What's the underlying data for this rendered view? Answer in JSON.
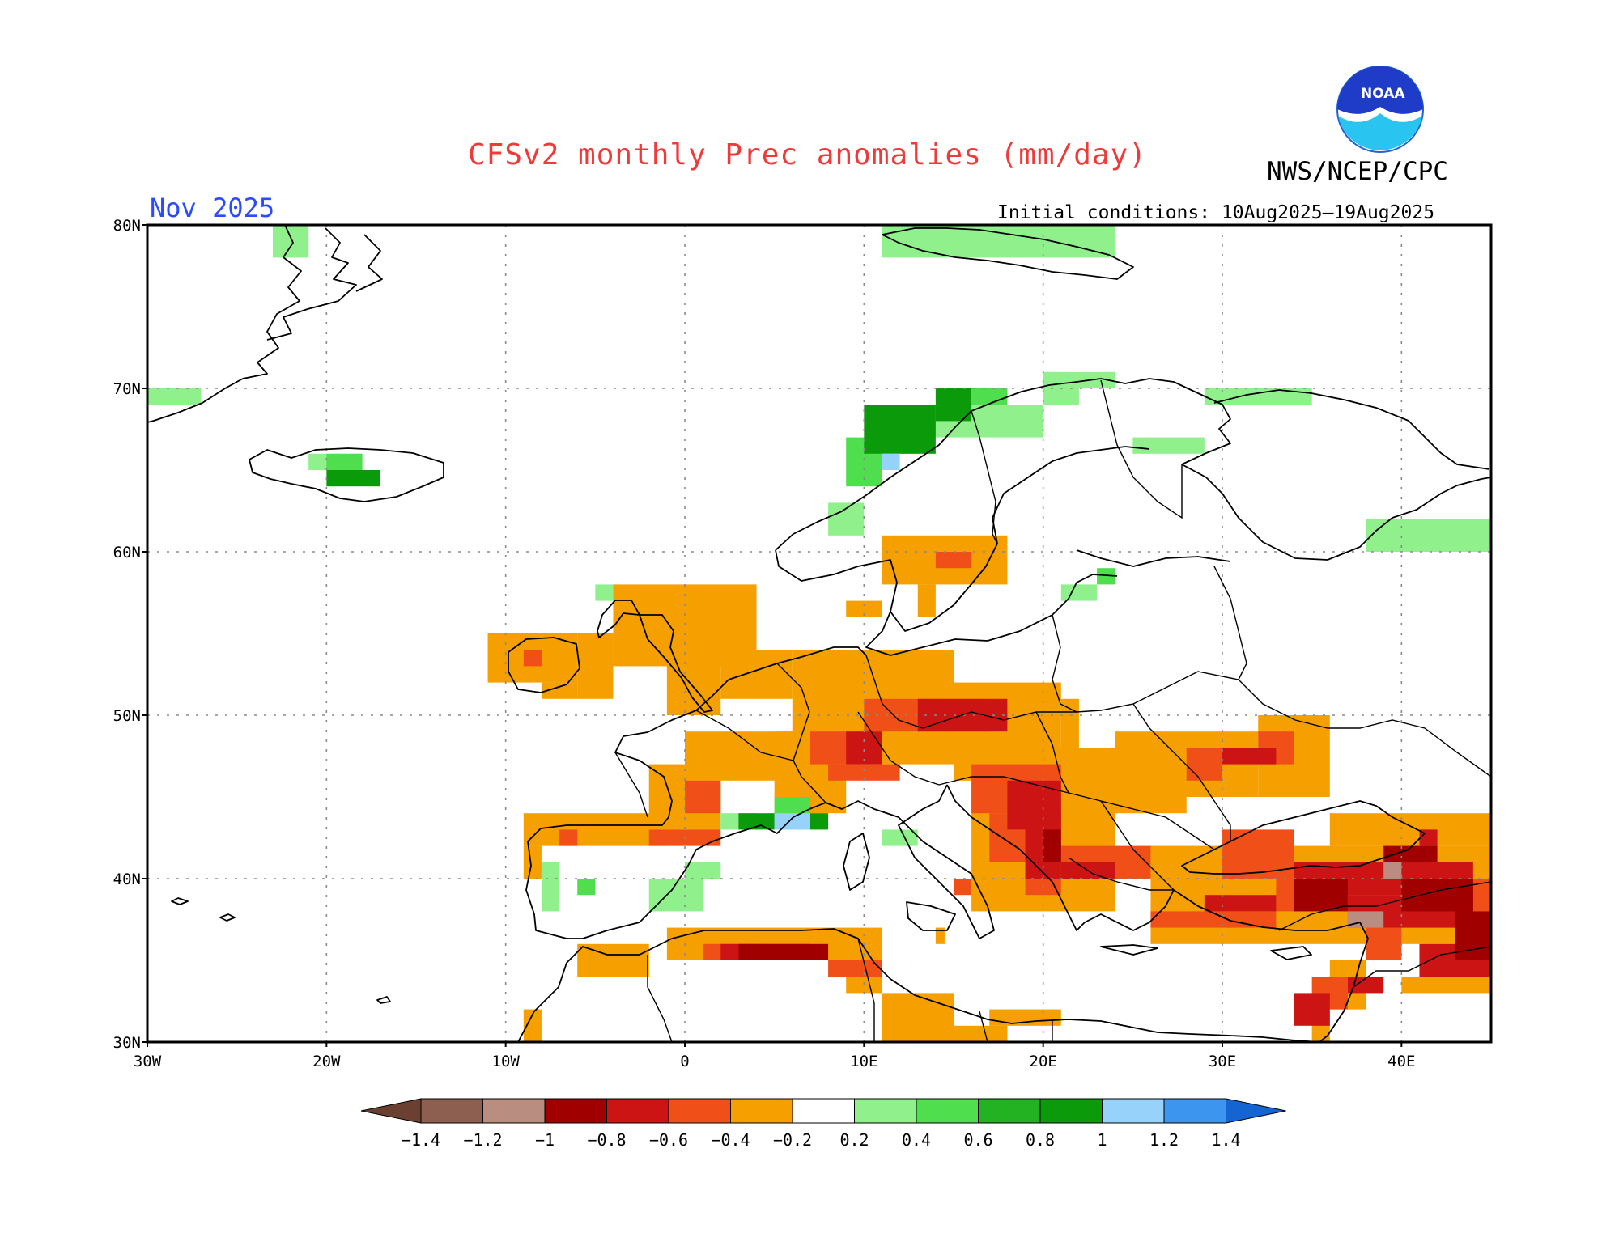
{
  "title": "CFSv2 monthly Prec anomalies (mm/day)",
  "period": "Nov 2025",
  "agency": "NWS/NCEP/CPC",
  "logo_text": "NOAA",
  "initial_conditions": "Initial conditions: 10Aug2025–19Aug2025",
  "map": {
    "lon_range": [
      -30,
      45
    ],
    "lat_range": [
      30,
      80
    ],
    "lon_ticks": [
      {
        "value": -30,
        "label": "30W"
      },
      {
        "value": -20,
        "label": "20W"
      },
      {
        "value": -10,
        "label": "10W"
      },
      {
        "value": 0,
        "label": "0"
      },
      {
        "value": 10,
        "label": "10E"
      },
      {
        "value": 20,
        "label": "20E"
      },
      {
        "value": 30,
        "label": "30E"
      },
      {
        "value": 40,
        "label": "40E"
      }
    ],
    "lat_ticks": [
      {
        "value": 30,
        "label": "30N"
      },
      {
        "value": 40,
        "label": "40N"
      },
      {
        "value": 50,
        "label": "50N"
      },
      {
        "value": 60,
        "label": "60N"
      },
      {
        "value": 70,
        "label": "70N"
      },
      {
        "value": 80,
        "label": "80N"
      }
    ],
    "grid": true
  },
  "colorbar": {
    "bins": [
      {
        "color": "#8c5f50"
      },
      {
        "color": "#b98e81"
      },
      {
        "color": "#a00000"
      },
      {
        "color": "#cd1414"
      },
      {
        "color": "#f05018"
      },
      {
        "color": "#f5a000"
      },
      {
        "color": "#ffffff"
      },
      {
        "color": "#8ff08c"
      },
      {
        "color": "#4ede4e"
      },
      {
        "color": "#22b222"
      },
      {
        "color": "#0a9a0a"
      },
      {
        "color": "#96d2fa"
      },
      {
        "color": "#3c96f0"
      }
    ],
    "low_color": "#6b4030",
    "high_color": "#1464d2",
    "labels": [
      "−1.4",
      "−1.2",
      "−1",
      "−0.8",
      "−0.6",
      "−0.4",
      "−0.2",
      "0.2",
      "0.4",
      "0.6",
      "0.8",
      "1",
      "1.2",
      "1.4"
    ]
  },
  "anomaly_regions": [
    {
      "color": "#f5a000",
      "cells": [
        [
          -4,
          58,
          4,
          53
        ],
        [
          -6,
          55,
          -4,
          51
        ],
        [
          -8,
          52,
          -6,
          51
        ],
        [
          -11,
          55,
          -6,
          52
        ],
        [
          11,
          61,
          18,
          58
        ],
        [
          13,
          58,
          14,
          56
        ],
        [
          9,
          57,
          11,
          56
        ],
        [
          6,
          54,
          15,
          47
        ],
        [
          15,
          52,
          21,
          46
        ],
        [
          21,
          51,
          22,
          48
        ],
        [
          2,
          54,
          6,
          51
        ],
        [
          -1,
          54,
          2,
          50
        ],
        [
          0,
          49,
          7,
          46
        ],
        [
          5,
          49,
          9,
          44
        ],
        [
          -2,
          47,
          2,
          43
        ],
        [
          -9,
          44,
          -1,
          42
        ],
        [
          -9,
          42,
          -8,
          40
        ],
        [
          16,
          48,
          24,
          38
        ],
        [
          24,
          49,
          32,
          45
        ],
        [
          32,
          50,
          36,
          45
        ],
        [
          22,
          46,
          28,
          44
        ],
        [
          26,
          42,
          45,
          36
        ],
        [
          36,
          44,
          45,
          42
        ],
        [
          -1,
          37,
          11,
          35
        ],
        [
          -6,
          36,
          -2,
          34
        ],
        [
          9,
          35,
          11,
          33
        ],
        [
          11,
          33,
          15,
          30
        ],
        [
          -9,
          32,
          -8,
          30
        ],
        [
          15,
          30,
          18,
          31
        ],
        [
          17,
          31,
          21,
          32
        ],
        [
          36,
          35,
          38,
          32
        ],
        [
          35,
          32,
          36,
          30
        ],
        [
          40,
          34,
          45,
          33
        ],
        [
          14,
          37,
          14.5,
          36
        ]
      ]
    },
    {
      "color": "#f05018",
      "cells": [
        [
          14,
          60,
          16,
          59
        ],
        [
          -9,
          54,
          -8,
          53
        ],
        [
          10,
          51,
          17,
          49
        ],
        [
          7,
          49,
          10,
          47
        ],
        [
          8,
          47,
          12,
          46
        ],
        [
          0,
          46,
          2,
          44
        ],
        [
          -2,
          43,
          2,
          42
        ],
        [
          -7,
          43,
          -6,
          42
        ],
        [
          16,
          47,
          21,
          44
        ],
        [
          17,
          44,
          19,
          41
        ],
        [
          19,
          42,
          21,
          39
        ],
        [
          21,
          42,
          26,
          40
        ],
        [
          30,
          43,
          34,
          40
        ],
        [
          32,
          49,
          34,
          47
        ],
        [
          28,
          48,
          30,
          46
        ],
        [
          26,
          38,
          33,
          37
        ],
        [
          33,
          40,
          36,
          38
        ],
        [
          1,
          36,
          4,
          35
        ],
        [
          8,
          35,
          11,
          34
        ],
        [
          38,
          37,
          40,
          35
        ],
        [
          35,
          34,
          37,
          32
        ],
        [
          44,
          40,
          45,
          38
        ],
        [
          15,
          40,
          16,
          39
        ]
      ]
    },
    {
      "color": "#cd1414",
      "cells": [
        [
          13,
          51,
          18,
          49
        ],
        [
          9,
          49,
          11,
          47
        ],
        [
          18,
          46,
          21,
          43
        ],
        [
          19,
          44,
          21,
          40
        ],
        [
          21,
          41,
          24,
          40
        ],
        [
          29,
          39,
          33,
          38
        ],
        [
          30,
          48,
          33,
          47
        ],
        [
          34,
          41,
          44,
          39
        ],
        [
          37,
          39,
          44,
          37
        ],
        [
          41,
          36,
          45,
          34
        ],
        [
          2,
          36,
          7,
          35
        ],
        [
          34,
          33,
          36,
          31
        ],
        [
          37,
          33,
          39,
          34
        ],
        [
          41,
          43,
          42,
          42
        ]
      ]
    },
    {
      "color": "#a00000",
      "cells": [
        [
          20,
          43,
          21,
          41
        ],
        [
          34,
          40,
          37,
          38
        ],
        [
          39,
          42,
          42,
          41
        ],
        [
          40,
          40,
          44,
          38
        ],
        [
          43,
          38,
          45,
          35
        ],
        [
          3,
          36,
          8,
          35
        ]
      ]
    },
    {
      "color": "#b98e81",
      "cells": [
        [
          37,
          38,
          39,
          37
        ],
        [
          39,
          41,
          40,
          40
        ]
      ]
    },
    {
      "color": "#8ff08c",
      "cells": [
        [
          -23,
          80,
          -21,
          78
        ],
        [
          -30,
          70,
          -27,
          69
        ],
        [
          -21,
          66,
          -18,
          65
        ],
        [
          11,
          80,
          24,
          78
        ],
        [
          12,
          69,
          13,
          66
        ],
        [
          13,
          69,
          20,
          67
        ],
        [
          20,
          71,
          22,
          69
        ],
        [
          22,
          71,
          24,
          70
        ],
        [
          29,
          70,
          35,
          69
        ],
        [
          25,
          67,
          29,
          66
        ],
        [
          38,
          62,
          45,
          60
        ],
        [
          8,
          63,
          10,
          61
        ],
        [
          -5,
          58,
          -4,
          57
        ],
        [
          21,
          58,
          23,
          57
        ],
        [
          -8,
          41,
          -7,
          38
        ],
        [
          -2,
          40,
          1,
          38
        ],
        [
          0,
          41,
          2,
          40
        ],
        [
          11,
          43,
          13,
          42
        ],
        [
          2,
          44,
          4,
          43
        ],
        [
          7,
          44,
          8,
          43
        ]
      ]
    },
    {
      "color": "#4ede4e",
      "cells": [
        [
          -20,
          66,
          -18,
          65
        ],
        [
          9,
          67,
          11,
          64
        ],
        [
          16,
          70,
          18,
          69
        ],
        [
          23,
          58,
          24,
          59
        ],
        [
          -6,
          40,
          -5,
          39
        ],
        [
          5,
          45,
          7,
          43
        ]
      ]
    },
    {
      "color": "#22b222"
    },
    {
      "color": "#0a9a0a",
      "cells": [
        [
          10,
          69,
          14,
          66
        ],
        [
          14,
          70,
          16,
          68
        ],
        [
          -20,
          65,
          -17,
          64
        ],
        [
          3,
          44,
          5,
          43
        ],
        [
          7,
          44,
          8,
          43
        ]
      ]
    },
    {
      "color": "#96d2fa",
      "cells": [
        [
          11,
          66,
          12,
          65
        ],
        [
          5,
          44,
          7,
          43
        ]
      ]
    }
  ]
}
